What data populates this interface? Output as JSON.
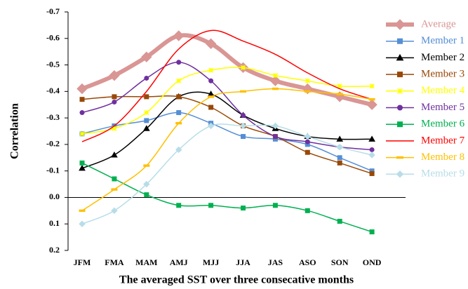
{
  "chart_data": {
    "type": "line",
    "y_label": "Correlation",
    "x_label": "The averaged SST over three consecative months",
    "categories": [
      "JFM",
      "FMA",
      "MAM",
      "AMJ",
      "MJJ",
      "JJA",
      "JAS",
      "ASO",
      "SON",
      "OND"
    ],
    "ylim": [
      0.2,
      -0.7
    ],
    "yticks": [
      -0.7,
      -0.6,
      -0.5,
      -0.4,
      -0.3,
      -0.2,
      -0.1,
      {
        "value": 0,
        "label": "0.0"
      },
      0.1,
      0.2
    ],
    "series": [
      {
        "name": "Average",
        "color": "#d99694",
        "marker": "diamond",
        "width": 6,
        "values": [
          -0.41,
          -0.46,
          -0.53,
          -0.61,
          -0.58,
          -0.49,
          -0.44,
          -0.41,
          -0.38,
          -0.35
        ]
      },
      {
        "name": "Member 1",
        "color": "#558ed5",
        "marker": "square",
        "width": 1.5,
        "values": [
          -0.24,
          -0.27,
          -0.29,
          -0.32,
          -0.28,
          -0.23,
          -0.22,
          -0.2,
          -0.15,
          -0.1
        ]
      },
      {
        "name": "Member 2",
        "color": "#000000",
        "marker": "triangle",
        "width": 1.5,
        "values": [
          -0.11,
          -0.16,
          -0.26,
          -0.38,
          -0.39,
          -0.31,
          -0.26,
          -0.23,
          -0.22,
          -0.22
        ]
      },
      {
        "name": "Member 3",
        "color": "#984807",
        "marker": "square",
        "width": 1.5,
        "values": [
          -0.37,
          -0.38,
          -0.38,
          -0.38,
          -0.34,
          -0.27,
          -0.23,
          -0.17,
          -0.13,
          -0.09
        ]
      },
      {
        "name": "Member 4",
        "color": "#ffff00",
        "marker": "star",
        "width": 1.5,
        "values": [
          -0.24,
          -0.26,
          -0.32,
          -0.44,
          -0.48,
          -0.49,
          -0.46,
          -0.44,
          -0.42,
          -0.42
        ]
      },
      {
        "name": "Member 5",
        "color": "#7030a0",
        "marker": "circle",
        "width": 1.5,
        "values": [
          -0.32,
          -0.36,
          -0.45,
          -0.51,
          -0.44,
          -0.31,
          -0.23,
          -0.21,
          -0.19,
          -0.18
        ]
      },
      {
        "name": "Member 6",
        "color": "#00b050",
        "marker": "square",
        "width": 1.5,
        "values": [
          -0.13,
          -0.07,
          -0.01,
          0.03,
          0.03,
          0.04,
          0.03,
          0.05,
          0.09,
          0.13
        ]
      },
      {
        "name": "Member 7",
        "color": "#ff0000",
        "marker": "none",
        "width": 1.5,
        "values": [
          -0.21,
          -0.27,
          -0.4,
          -0.56,
          -0.63,
          -0.59,
          -0.54,
          -0.47,
          -0.41,
          -0.37
        ]
      },
      {
        "name": "Member 8",
        "color": "#ffc000",
        "marker": "dash",
        "width": 1.5,
        "values": [
          0.05,
          -0.03,
          -0.12,
          -0.28,
          -0.38,
          -0.4,
          -0.41,
          -0.4,
          -0.39,
          -0.37
        ]
      },
      {
        "name": "Member 9",
        "color": "#b7dde8",
        "marker": "diamond",
        "width": 1.5,
        "values": [
          0.1,
          0.05,
          -0.05,
          -0.18,
          -0.27,
          -0.27,
          -0.27,
          -0.23,
          -0.19,
          -0.16
        ]
      }
    ]
  }
}
